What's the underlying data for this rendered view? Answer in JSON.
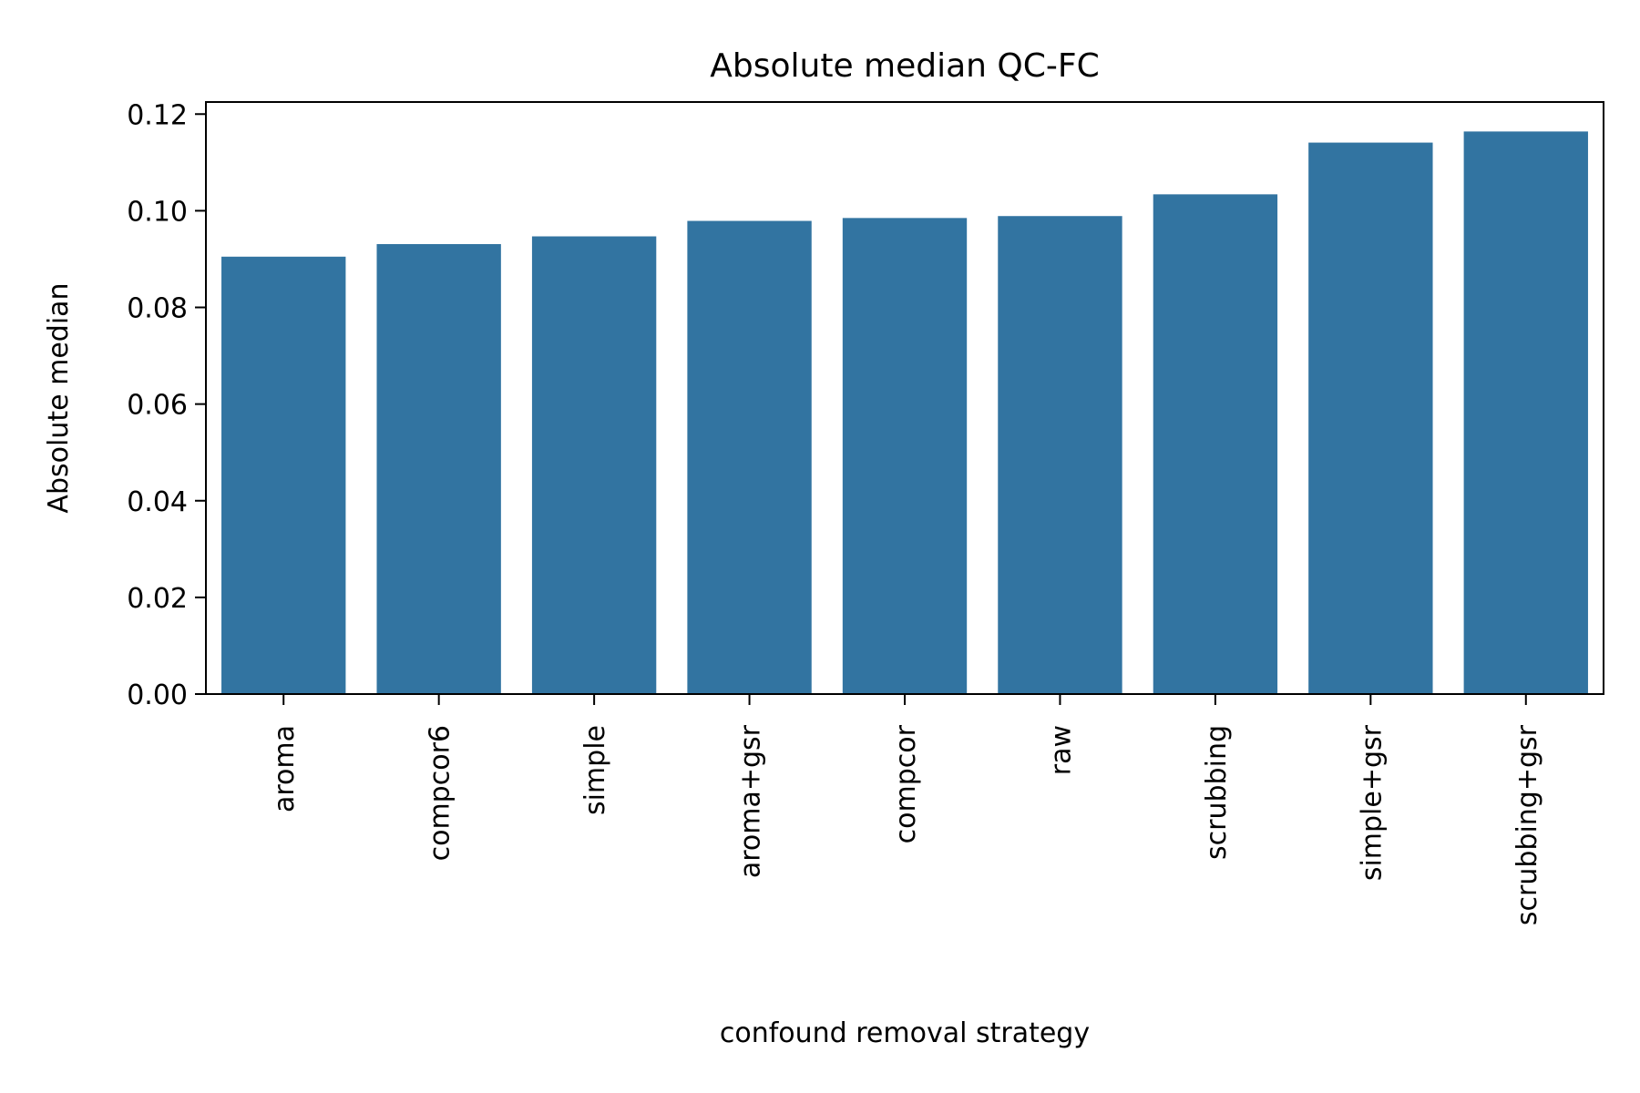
{
  "chart_data": {
    "type": "bar",
    "title": "Absolute median QC-FC",
    "xlabel": "confound removal strategy",
    "ylabel": "Absolute median",
    "categories": [
      "aroma",
      "compcor6",
      "simple",
      "aroma+gsr",
      "compcor",
      "raw",
      "scrubbing",
      "simple+gsr",
      "scrubbing+gsr"
    ],
    "values": [
      0.0905,
      0.0931,
      0.0947,
      0.0979,
      0.0985,
      0.0989,
      0.1034,
      0.1141,
      0.1164
    ],
    "ylim": [
      0,
      0.1225
    ],
    "yticks": [
      "0.00",
      "0.02",
      "0.04",
      "0.06",
      "0.08",
      "0.10",
      "0.12"
    ],
    "bar_color": "#3274a1",
    "grid": false,
    "legend": "none"
  }
}
